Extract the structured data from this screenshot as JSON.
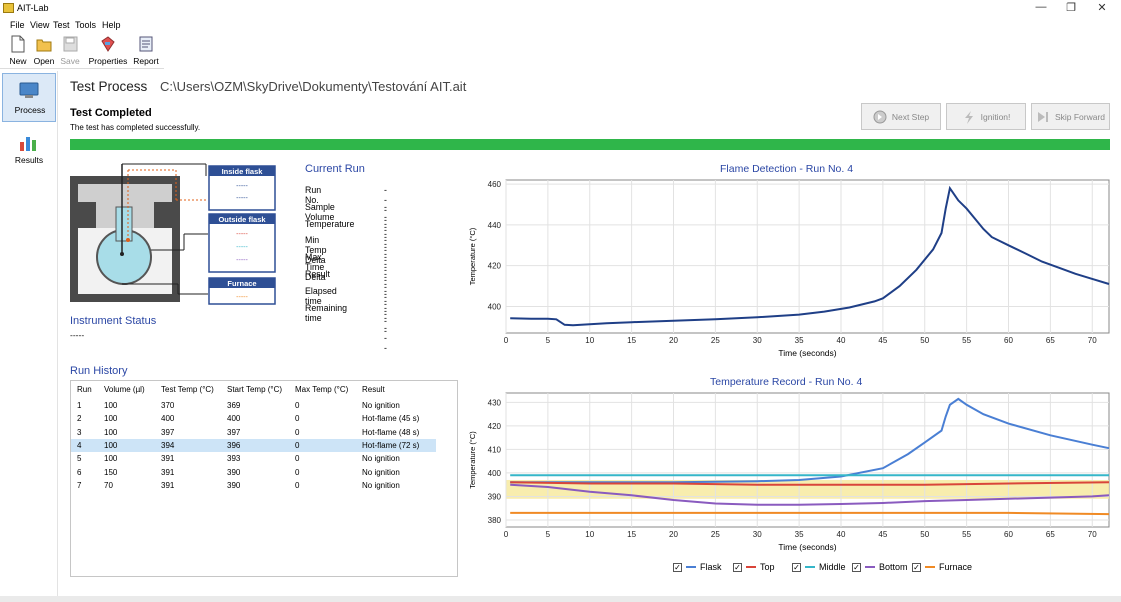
{
  "window": {
    "title": "AIT-Lab"
  },
  "menu": [
    "File",
    "View",
    "Test",
    "Tools",
    "Help"
  ],
  "toolbar": {
    "new": "New",
    "open": "Open",
    "save": "Save",
    "properties": "Properties",
    "report": "Report"
  },
  "sidebar": {
    "process": "Process",
    "results": "Results"
  },
  "header": {
    "title": "Test Process",
    "path": "C:\\Users\\OZM\\SkyDrive\\Dokumenty\\Testování AIT.ait"
  },
  "status": {
    "title": "Test Completed",
    "message": "The test has completed successfully."
  },
  "controls": {
    "next_step": "Next Step",
    "ignition": "Ignition!",
    "skip_forward": "Skip Forward"
  },
  "progress": 1.0,
  "diagram": {
    "inside_flask": "Inside flask",
    "outside_flask": "Outside flask",
    "furnace": "Furnace",
    "dashes": "-----"
  },
  "current_run": {
    "title": "Current Run",
    "labels": [
      "Run No.",
      "Sample Volume",
      "Temperature",
      "Min Temp Delta",
      "Max Time Delta",
      "Result",
      "Elapsed time",
      "Remaining time"
    ],
    "values": [
      "-----",
      "-----",
      "-----",
      "-----",
      "-----",
      "-----",
      "-----",
      "-----"
    ]
  },
  "instrument_status": {
    "title": "Instrument Status",
    "value": "-----"
  },
  "run_history": {
    "title": "Run History",
    "columns": [
      "Run",
      "Volume (µl)",
      "Test Temp (°C)",
      "Start Temp (°C)",
      "Max Temp (°C)",
      "Result"
    ],
    "rows": [
      [
        "1",
        "100",
        "370",
        "369",
        "0",
        "No ignition"
      ],
      [
        "2",
        "100",
        "400",
        "400",
        "0",
        "Hot-flame (45 s)"
      ],
      [
        "3",
        "100",
        "397",
        "397",
        "0",
        "Hot-flame (48 s)"
      ],
      [
        "4",
        "100",
        "394",
        "396",
        "0",
        "Hot-flame (72 s)"
      ],
      [
        "5",
        "100",
        "391",
        "393",
        "0",
        "No ignition"
      ],
      [
        "6",
        "150",
        "391",
        "390",
        "0",
        "No ignition"
      ],
      [
        "7",
        "70",
        "391",
        "390",
        "0",
        "No ignition"
      ]
    ],
    "selected": 3
  },
  "colors": {
    "flask": "#1f3f87",
    "flask2": "#4a7fd4",
    "top": "#d9453a",
    "middle": "#35b6c9",
    "bottom": "#8a5bbf",
    "furnace": "#f08a24",
    "progress": "#2fb64a",
    "band": "#f7eaa0"
  },
  "chart_data": [
    {
      "type": "line",
      "title": "Flame Detection - Run No. 4",
      "xlabel": "Time (seconds)",
      "ylabel": "Temperature (°C)",
      "xlim": [
        0,
        72
      ],
      "ylim": [
        387,
        462
      ],
      "xticks": [
        0,
        5,
        10,
        15,
        20,
        25,
        30,
        35,
        40,
        45,
        50,
        55,
        60,
        65,
        70
      ],
      "yticks": [
        400,
        420,
        440,
        460
      ],
      "grid": true,
      "series": [
        {
          "points": [
            [
              0.5,
              394.2
            ],
            [
              3,
              394
            ],
            [
              5,
              394
            ],
            [
              6,
              393.7
            ],
            [
              7,
              391
            ],
            [
              8,
              390.8
            ],
            [
              9,
              391
            ],
            [
              12,
              391.8
            ],
            [
              15,
              392.3
            ],
            [
              20,
              393
            ],
            [
              25,
              393.7
            ],
            [
              30,
              394.7
            ],
            [
              35,
              396
            ],
            [
              38,
              397.5
            ],
            [
              41,
              399.5
            ],
            [
              44,
              402.5
            ],
            [
              45,
              404
            ],
            [
              47,
              410
            ],
            [
              49,
              418
            ],
            [
              51,
              428
            ],
            [
              52,
              436
            ],
            [
              52.5,
              448
            ],
            [
              53,
              458
            ],
            [
              53.5,
              455
            ],
            [
              54,
              452
            ],
            [
              55,
              448
            ],
            [
              56,
              443
            ],
            [
              57,
              438
            ],
            [
              58,
              434
            ],
            [
              60,
              430
            ],
            [
              62,
              426
            ],
            [
              64,
              422
            ],
            [
              66,
              419
            ],
            [
              68,
              416
            ],
            [
              70,
              413.5
            ],
            [
              72,
              411
            ]
          ]
        }
      ]
    },
    {
      "type": "line",
      "title": "Temperature Record - Run No. 4",
      "xlabel": "Time (seconds)",
      "ylabel": "Temperature (°C)",
      "xlim": [
        0,
        72
      ],
      "ylim": [
        377,
        434
      ],
      "xticks": [
        0,
        5,
        10,
        15,
        20,
        25,
        30,
        35,
        40,
        45,
        50,
        55,
        60,
        65,
        70
      ],
      "yticks": [
        380,
        390,
        400,
        410,
        420,
        430
      ],
      "grid": true,
      "band": [
        389,
        397
      ],
      "series": [
        {
          "name": "Flask",
          "points": [
            [
              0.5,
              396
            ],
            [
              5,
              396
            ],
            [
              10,
              396
            ],
            [
              20,
              396
            ],
            [
              30,
              396.5
            ],
            [
              35,
              397
            ],
            [
              40,
              398.5
            ],
            [
              45,
              402
            ],
            [
              48,
              408
            ],
            [
              50,
              413
            ],
            [
              52,
              418
            ],
            [
              52.5,
              424
            ],
            [
              53,
              429
            ],
            [
              54,
              431.5
            ],
            [
              55,
              429
            ],
            [
              57,
              425
            ],
            [
              60,
              421
            ],
            [
              65,
              416
            ],
            [
              70,
              412
            ],
            [
              72,
              410.5
            ]
          ]
        },
        {
          "name": "Top",
          "points": [
            [
              0.5,
              396
            ],
            [
              10,
              395.5
            ],
            [
              20,
              395.5
            ],
            [
              30,
              395
            ],
            [
              40,
              395
            ],
            [
              50,
              395
            ],
            [
              60,
              395.5
            ],
            [
              72,
              396
            ]
          ]
        },
        {
          "name": "Middle",
          "points": [
            [
              0.5,
              399
            ],
            [
              10,
              399
            ],
            [
              20,
              399
            ],
            [
              30,
              399
            ],
            [
              40,
              399
            ],
            [
              50,
              399
            ],
            [
              60,
              399
            ],
            [
              72,
              399
            ]
          ]
        },
        {
          "name": "Bottom",
          "points": [
            [
              0.5,
              395
            ],
            [
              5,
              394
            ],
            [
              10,
              392
            ],
            [
              15,
              390.5
            ],
            [
              20,
              388.5
            ],
            [
              25,
              387
            ],
            [
              30,
              386.5
            ],
            [
              35,
              386.5
            ],
            [
              40,
              386.8
            ],
            [
              45,
              387.2
            ],
            [
              50,
              388
            ],
            [
              55,
              388.5
            ],
            [
              60,
              389
            ],
            [
              65,
              389.5
            ],
            [
              70,
              390
            ],
            [
              72,
              390.5
            ]
          ]
        },
        {
          "name": "Furnace",
          "points": [
            [
              0.5,
              383
            ],
            [
              10,
              383
            ],
            [
              20,
              383
            ],
            [
              30,
              383
            ],
            [
              40,
              383
            ],
            [
              50,
              383
            ],
            [
              60,
              383
            ],
            [
              72,
              382.5
            ]
          ]
        }
      ]
    }
  ],
  "legend": [
    {
      "name": "Flask",
      "color": "#4a7fd4"
    },
    {
      "name": "Top",
      "color": "#d9453a"
    },
    {
      "name": "Middle",
      "color": "#35b6c9"
    },
    {
      "name": "Bottom",
      "color": "#8a5bbf"
    },
    {
      "name": "Furnace",
      "color": "#f08a24"
    }
  ]
}
